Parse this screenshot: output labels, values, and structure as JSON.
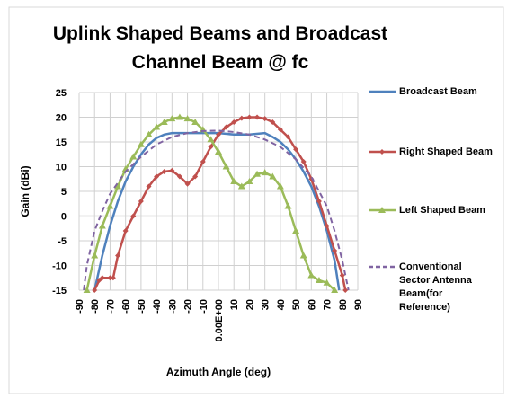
{
  "chart_data": {
    "type": "line",
    "title": "Uplink Shaped Beams and Broadcast Channel Beam @ fc",
    "x_label": "Azimuth Angle (deg)",
    "y_label": "Gain (dBi)",
    "xlim": [
      -90,
      90
    ],
    "xticks": [
      -90,
      -80,
      -70,
      -60,
      -50,
      -40,
      -30,
      -20,
      -10,
      {
        "value": 0,
        "label": "0.00E+00"
      },
      10,
      20,
      30,
      40,
      50,
      60,
      70,
      80,
      90
    ],
    "ylim": [
      -15,
      25
    ],
    "yticks": [
      -15,
      -10,
      -5,
      0,
      5,
      10,
      15,
      20,
      25
    ],
    "grid": true,
    "legend": "right",
    "series": [
      {
        "name": "Broadcast Beam",
        "color": "#4f81bd",
        "marker": "none",
        "dashed": false,
        "x": [
          -80,
          -75,
          -70,
          -65,
          -60,
          -55,
          -50,
          -45,
          -40,
          -35,
          -30,
          -20,
          -10,
          0,
          10,
          20,
          30,
          35,
          40,
          45,
          50,
          55,
          60,
          65,
          70,
          75,
          78
        ],
        "values": [
          -15,
          -8,
          -2,
          3,
          7,
          10,
          12.5,
          14.5,
          15.8,
          16.5,
          16.8,
          16.8,
          16.8,
          16.8,
          16.5,
          16.5,
          16.8,
          16,
          15,
          13.5,
          11.5,
          9,
          6,
          2,
          -3,
          -9,
          -15
        ]
      },
      {
        "name": "Right Shaped Beam",
        "color": "#c0504d",
        "marker": "diamond",
        "dashed": false,
        "x": [
          -80,
          -77,
          -75,
          -70,
          -68,
          -65,
          -60,
          -55,
          -50,
          -45,
          -40,
          -35,
          -30,
          -25,
          -20,
          -15,
          -10,
          -5,
          0,
          5,
          10,
          15,
          20,
          25,
          30,
          35,
          40,
          45,
          50,
          55,
          60,
          65,
          70,
          75,
          80,
          82
        ],
        "values": [
          -15,
          -13,
          -12.5,
          -12.5,
          -12.5,
          -8,
          -3,
          0,
          3,
          6,
          8,
          9,
          9.2,
          8,
          6.5,
          8,
          11,
          14,
          16.5,
          18,
          19,
          19.8,
          20,
          20,
          19.7,
          19,
          17.5,
          16,
          13.5,
          11,
          7.5,
          3,
          -2,
          -7,
          -12,
          -15
        ]
      },
      {
        "name": "Left Shaped Beam",
        "color": "#9bbb59",
        "marker": "triangle",
        "dashed": false,
        "x": [
          -85,
          -80,
          -75,
          -70,
          -65,
          -60,
          -55,
          -50,
          -45,
          -40,
          -35,
          -30,
          -25,
          -20,
          -15,
          -10,
          -5,
          0,
          5,
          10,
          15,
          20,
          25,
          30,
          35,
          40,
          45,
          50,
          55,
          60,
          65,
          70,
          75
        ],
        "values": [
          -15,
          -8,
          -2,
          2,
          6,
          9.5,
          12,
          14.5,
          16.5,
          18,
          19,
          19.7,
          20,
          19.7,
          19,
          17.5,
          15.5,
          13,
          10,
          7,
          6,
          7,
          8.5,
          8.8,
          8,
          6,
          2,
          -3,
          -8,
          -12,
          -13,
          -13.5,
          -15
        ]
      },
      {
        "name": "Conventional Sector Antenna Beam(for Reference)",
        "color": "#8064a2",
        "marker": "none",
        "dashed": true,
        "x": [
          -87,
          -85,
          -80,
          -75,
          -70,
          -60,
          -50,
          -40,
          -30,
          -20,
          -10,
          0,
          10,
          20,
          30,
          40,
          50,
          60,
          70,
          75,
          80,
          84
        ],
        "values": [
          -15,
          -10,
          -3,
          1,
          4.5,
          9,
          12,
          14.5,
          16,
          16.8,
          17.2,
          17.3,
          17,
          16.5,
          15.5,
          14,
          11.5,
          8,
          2,
          -3,
          -9,
          -15
        ]
      }
    ]
  }
}
